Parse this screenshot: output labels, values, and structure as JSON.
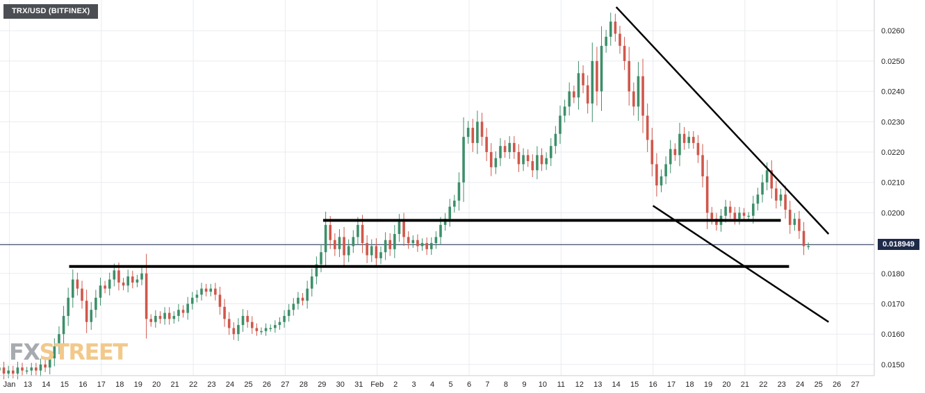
{
  "symbol_label": "TRX/USD (BITFINEX)",
  "last_price_label": "0.018949",
  "watermark": {
    "part_a": "FX",
    "part_b": "STREET"
  },
  "colors": {
    "up": "#3d8f6a",
    "down": "#d0574b",
    "grid": "#e8ebf0",
    "price_line": "#1e2a4a",
    "lines": "#000000"
  },
  "chart_data": {
    "type": "candlestick",
    "title": "TRX/USD (BITFINEX)",
    "xlabel": "",
    "ylabel": "",
    "ylim": [
      0.01455,
      0.02695
    ],
    "grid": true,
    "y_ticks": [
      "0.0150",
      "0.0160",
      "0.0170",
      "0.0180",
      "0.0190",
      "0.0200",
      "0.0210",
      "0.0220",
      "0.0230",
      "0.0240",
      "0.0250",
      "0.0260"
    ],
    "y_tick_values": [
      0.015,
      0.016,
      0.017,
      0.018,
      0.019,
      0.02,
      0.021,
      0.022,
      0.023,
      0.024,
      0.025,
      0.026
    ],
    "x_tick_labels": [
      "Jan",
      "13",
      "14",
      "15",
      "16",
      "17",
      "18",
      "19",
      "20",
      "21",
      "22",
      "23",
      "24",
      "25",
      "26",
      "27",
      "28",
      "29",
      "30",
      "31",
      "Feb",
      "2",
      "3",
      "4",
      "5",
      "6",
      "7",
      "8",
      "9",
      "10",
      "11",
      "12",
      "13",
      "14",
      "15",
      "16",
      "17",
      "18",
      "19",
      "20",
      "21",
      "22",
      "23",
      "24",
      "25",
      "26",
      "27"
    ],
    "x_tick_days": [
      12,
      13,
      14,
      15,
      16,
      17,
      18,
      19,
      20,
      21,
      22,
      23,
      24,
      25,
      26,
      27,
      28,
      29,
      30,
      31,
      32,
      33,
      34,
      35,
      36,
      37,
      38,
      39,
      40,
      41,
      42,
      43,
      44,
      45,
      46,
      47,
      48,
      49,
      50,
      51,
      52,
      53,
      54,
      55,
      56,
      57,
      58
    ],
    "last_price": 0.018949,
    "candle_closes": [
      [
        11.2,
        0.0148
      ],
      [
        11.45,
        0.0149
      ],
      [
        11.7,
        0.0147
      ],
      [
        11.95,
        0.0148
      ],
      [
        12.2,
        0.0147
      ],
      [
        12.45,
        0.0149
      ],
      [
        12.7,
        0.0148
      ],
      [
        12.95,
        0.0148
      ],
      [
        13.2,
        0.0149
      ],
      [
        13.45,
        0.0148
      ],
      [
        13.7,
        0.015
      ],
      [
        13.95,
        0.0149
      ],
      [
        14.2,
        0.0152
      ],
      [
        14.45,
        0.0156
      ],
      [
        14.7,
        0.016
      ],
      [
        14.95,
        0.0166
      ],
      [
        15.2,
        0.0172
      ],
      [
        15.45,
        0.0178
      ],
      [
        15.7,
        0.0175
      ],
      [
        15.95,
        0.0171
      ],
      [
        16.2,
        0.0164
      ],
      [
        16.45,
        0.0168
      ],
      [
        16.7,
        0.0172
      ],
      [
        16.95,
        0.0176
      ],
      [
        17.2,
        0.0175
      ],
      [
        17.45,
        0.0178
      ],
      [
        17.7,
        0.0181
      ],
      [
        17.95,
        0.0177
      ],
      [
        18.2,
        0.0176
      ],
      [
        18.45,
        0.0179
      ],
      [
        18.7,
        0.0177
      ],
      [
        18.95,
        0.0178
      ],
      [
        19.2,
        0.018
      ],
      [
        19.45,
        0.0165
      ],
      [
        19.7,
        0.0164
      ],
      [
        19.95,
        0.0166
      ],
      [
        20.2,
        0.0165
      ],
      [
        20.45,
        0.0167
      ],
      [
        20.7,
        0.0165
      ],
      [
        20.95,
        0.0166
      ],
      [
        21.2,
        0.0168
      ],
      [
        21.45,
        0.0167
      ],
      [
        21.7,
        0.017
      ],
      [
        21.95,
        0.0172
      ],
      [
        22.2,
        0.0173
      ],
      [
        22.45,
        0.0175
      ],
      [
        22.7,
        0.0174
      ],
      [
        22.95,
        0.0175
      ],
      [
        23.2,
        0.0173
      ],
      [
        23.45,
        0.0169
      ],
      [
        23.7,
        0.0165
      ],
      [
        23.95,
        0.0162
      ],
      [
        24.2,
        0.016
      ],
      [
        24.45,
        0.0163
      ],
      [
        24.7,
        0.0166
      ],
      [
        24.95,
        0.0164
      ],
      [
        25.2,
        0.0162
      ],
      [
        25.45,
        0.0161
      ],
      [
        25.7,
        0.0161
      ],
      [
        25.95,
        0.0162
      ],
      [
        26.2,
        0.0162
      ],
      [
        26.45,
        0.0163
      ],
      [
        26.7,
        0.0164
      ],
      [
        26.95,
        0.0166
      ],
      [
        27.2,
        0.0168
      ],
      [
        27.45,
        0.017
      ],
      [
        27.7,
        0.0172
      ],
      [
        27.95,
        0.0171
      ],
      [
        28.2,
        0.0175
      ],
      [
        28.45,
        0.0179
      ],
      [
        28.7,
        0.0183
      ],
      [
        28.95,
        0.0187
      ],
      [
        29.2,
        0.0196
      ],
      [
        29.45,
        0.0191
      ],
      [
        29.7,
        0.0188
      ],
      [
        29.95,
        0.0192
      ],
      [
        30.2,
        0.0186
      ],
      [
        30.45,
        0.0189
      ],
      [
        30.7,
        0.0192
      ],
      [
        30.95,
        0.0196
      ],
      [
        31.2,
        0.019
      ],
      [
        31.45,
        0.0186
      ],
      [
        31.7,
        0.0189
      ],
      [
        31.95,
        0.0185
      ],
      [
        32.2,
        0.0187
      ],
      [
        32.45,
        0.0191
      ],
      [
        32.7,
        0.0188
      ],
      [
        32.95,
        0.0193
      ],
      [
        33.2,
        0.0197
      ],
      [
        33.45,
        0.0192
      ],
      [
        33.7,
        0.019
      ],
      [
        33.95,
        0.0191
      ],
      [
        34.2,
        0.0189
      ],
      [
        34.45,
        0.019
      ],
      [
        34.7,
        0.0188
      ],
      [
        34.95,
        0.019
      ],
      [
        35.2,
        0.0192
      ],
      [
        35.45,
        0.0196
      ],
      [
        35.7,
        0.0198
      ],
      [
        35.95,
        0.0202
      ],
      [
        36.2,
        0.0204
      ],
      [
        36.45,
        0.021
      ],
      [
        36.7,
        0.0225
      ],
      [
        36.95,
        0.0228
      ],
      [
        37.2,
        0.0223
      ],
      [
        37.45,
        0.023
      ],
      [
        37.7,
        0.0225
      ],
      [
        37.95,
        0.022
      ],
      [
        38.2,
        0.0215
      ],
      [
        38.45,
        0.0218
      ],
      [
        38.7,
        0.0222
      ],
      [
        38.95,
        0.022
      ],
      [
        39.2,
        0.0223
      ],
      [
        39.45,
        0.022
      ],
      [
        39.7,
        0.0216
      ],
      [
        39.95,
        0.0219
      ],
      [
        40.2,
        0.0217
      ],
      [
        40.45,
        0.0214
      ],
      [
        40.7,
        0.0219
      ],
      [
        40.95,
        0.0216
      ],
      [
        41.2,
        0.0218
      ],
      [
        41.45,
        0.0222
      ],
      [
        41.7,
        0.0226
      ],
      [
        41.95,
        0.0232
      ],
      [
        42.2,
        0.0235
      ],
      [
        42.45,
        0.024
      ],
      [
        42.7,
        0.0238
      ],
      [
        42.95,
        0.0246
      ],
      [
        43.2,
        0.0242
      ],
      [
        43.45,
        0.0236
      ],
      [
        43.7,
        0.025
      ],
      [
        43.95,
        0.024
      ],
      [
        44.2,
        0.0255
      ],
      [
        44.45,
        0.0258
      ],
      [
        44.7,
        0.0263
      ],
      [
        44.95,
        0.0259
      ],
      [
        45.2,
        0.0255
      ],
      [
        45.45,
        0.025
      ],
      [
        45.7,
        0.024
      ],
      [
        45.95,
        0.0235
      ],
      [
        46.2,
        0.0245
      ],
      [
        46.45,
        0.0232
      ],
      [
        46.7,
        0.0224
      ],
      [
        46.95,
        0.0216
      ],
      [
        47.2,
        0.0209
      ],
      [
        47.45,
        0.0212
      ],
      [
        47.7,
        0.0216
      ],
      [
        47.95,
        0.0221
      ],
      [
        48.2,
        0.0219
      ],
      [
        48.45,
        0.0226
      ],
      [
        48.7,
        0.0223
      ],
      [
        48.95,
        0.0225
      ],
      [
        49.2,
        0.0223
      ],
      [
        49.45,
        0.0219
      ],
      [
        49.7,
        0.0212
      ],
      [
        49.95,
        0.02
      ],
      [
        50.2,
        0.0198
      ],
      [
        50.45,
        0.0196
      ],
      [
        50.7,
        0.0199
      ],
      [
        50.95,
        0.0202
      ],
      [
        51.2,
        0.02
      ],
      [
        51.45,
        0.0198
      ],
      [
        51.7,
        0.02
      ],
      [
        51.95,
        0.0199
      ],
      [
        52.2,
        0.0199
      ],
      [
        52.45,
        0.0203
      ],
      [
        52.7,
        0.0206
      ],
      [
        52.95,
        0.021
      ],
      [
        53.2,
        0.0214
      ],
      [
        53.45,
        0.0208
      ],
      [
        53.7,
        0.0204
      ],
      [
        53.95,
        0.0206
      ],
      [
        54.2,
        0.0201
      ],
      [
        54.45,
        0.0196
      ],
      [
        54.7,
        0.0198
      ],
      [
        54.95,
        0.0194
      ],
      [
        55.2,
        0.0189
      ],
      [
        55.45,
        0.0189
      ]
    ],
    "horizontal_lines": [
      {
        "value": 0.01823,
        "from_day": 15.25,
        "to_day": 54.4
      },
      {
        "value": 0.01975,
        "from_day": 29.06,
        "to_day": 53.95
      }
    ],
    "trend_lines": [
      {
        "from_day": 45.0,
        "from_value": 0.02678,
        "to_day": 56.55,
        "to_value": 0.0193
      },
      {
        "from_day": 47.0,
        "from_value": 0.02023,
        "to_day": 56.55,
        "to_value": 0.0164
      }
    ]
  }
}
